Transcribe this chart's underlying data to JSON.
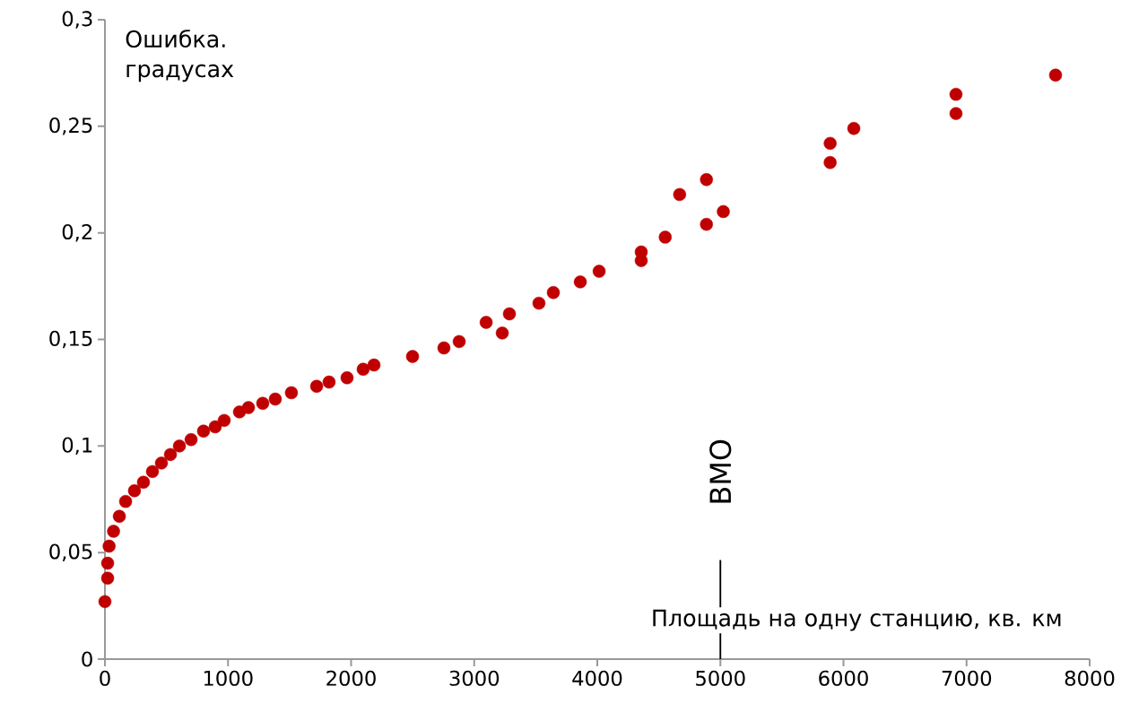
{
  "chart_data": {
    "type": "scatter",
    "xlabel": "Площадь на одну станцию, кв. км",
    "ylabel": "Ошибка. градусах",
    "x": [
      0,
      22,
      22,
      34,
      70,
      117,
      168,
      240,
      313,
      386,
      459,
      532,
      605,
      700,
      801,
      896,
      969,
      1093,
      1166,
      1282,
      1384,
      1515,
      1720,
      1821,
      1967,
      2098,
      2186,
      2499,
      2754,
      2878,
      3097,
      3228,
      3286,
      3526,
      3643,
      3862,
      4015,
      4357,
      4357,
      4552,
      4669,
      4887,
      4887,
      5024,
      5892,
      5892,
      6084,
      6914,
      6914,
      7723
    ],
    "series": [
      {
        "color": "#c00000",
        "values": [
          0.027,
          0.038,
          0.045,
          0.053,
          0.06,
          0.067,
          0.074,
          0.079,
          0.083,
          0.088,
          0.092,
          0.096,
          0.1,
          0.103,
          0.107,
          0.109,
          0.112,
          0.116,
          0.118,
          0.12,
          0.122,
          0.125,
          0.128,
          0.13,
          0.132,
          0.136,
          0.138,
          0.142,
          0.146,
          0.149,
          0.158,
          0.153,
          0.162,
          0.167,
          0.172,
          0.177,
          0.182,
          0.187,
          0.191,
          0.198,
          0.218,
          0.225,
          0.204,
          0.21,
          0.242,
          0.233,
          0.249,
          0.265,
          0.256,
          0.274
        ]
      }
    ],
    "xlim": [
      0,
      8000
    ],
    "xticks": [
      0,
      1000,
      2000,
      3000,
      4000,
      5000,
      6000,
      7000,
      8000
    ],
    "ylim": [
      0,
      0.3
    ],
    "yticks": [
      0,
      {
        "value": 0.05,
        "label": "0,05"
      },
      {
        "value": 0.1,
        "label": "0,1"
      },
      {
        "value": 0.15,
        "label": "0,15"
      },
      {
        "value": 0.2,
        "label": "0,2"
      },
      {
        "value": 0.25,
        "label": "0,25"
      },
      {
        "value": 0.3,
        "label": "0,3"
      }
    ],
    "ref_lines": [
      {
        "axis": "x",
        "value": 5000,
        "label": "ВМО"
      }
    ],
    "grid": false
  }
}
